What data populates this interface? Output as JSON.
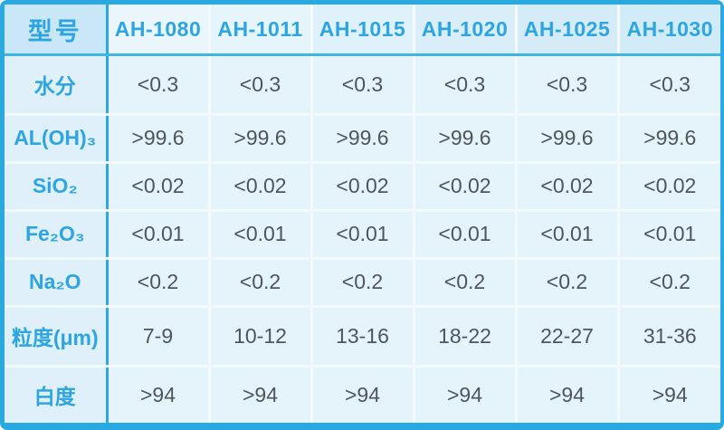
{
  "chart_data": {
    "type": "table",
    "corner_label": "型号",
    "columns": [
      "AH-1080",
      "AH-1011",
      "AH-1015",
      "AH-1020",
      "AH-1025",
      "AH-1030"
    ],
    "rows": [
      {
        "label": "水分",
        "values": [
          "<0.3",
          "<0.3",
          "<0.3",
          "<0.3",
          "<0.3",
          "<0.3"
        ]
      },
      {
        "label": "AL(OH)₃",
        "values": [
          ">99.6",
          ">99.6",
          ">99.6",
          ">99.6",
          ">99.6",
          ">99.6"
        ]
      },
      {
        "label": "SiO₂",
        "values": [
          "<0.02",
          "<0.02",
          "<0.02",
          "<0.02",
          "<0.02",
          "<0.02"
        ]
      },
      {
        "label": "Fe₂O₃",
        "values": [
          "<0.01",
          "<0.01",
          "<0.01",
          "<0.01",
          "<0.01",
          "<0.01"
        ]
      },
      {
        "label": "Na₂O",
        "values": [
          "<0.2",
          "<0.2",
          "<0.2",
          "<0.2",
          "<0.2",
          "<0.2"
        ]
      },
      {
        "label": "粒度(μm)",
        "values": [
          "7-9",
          "10-12",
          "13-16",
          "18-22",
          "22-27",
          "31-36"
        ]
      },
      {
        "label": "白度",
        "values": [
          ">94",
          ">94",
          ">94",
          ">94",
          ">94",
          ">94"
        ]
      }
    ]
  },
  "colors": {
    "accent_border": "#29a9e1",
    "header_text": "#2ca5e2",
    "value_text": "#4e565c",
    "corner_bg": "#c9e7f6",
    "label_bg": "#dff0fa",
    "cell_bg": "#e5f3fb",
    "cell_gap": "#f2fafe"
  }
}
